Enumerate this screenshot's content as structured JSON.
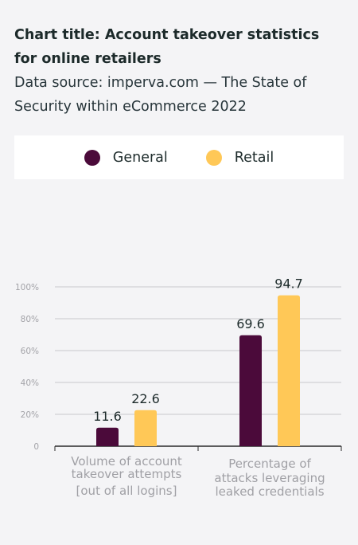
{
  "header": {
    "title": "Chart title: Account takeover statistics for online retailers",
    "subtitle": "Data source: imperva.com — The State of Security within eCommerce 2022"
  },
  "legend": [
    {
      "label": "General",
      "color": "#4b0a3a"
    },
    {
      "label": "Retail",
      "color": "#ffc857"
    }
  ],
  "chart_data": {
    "type": "bar",
    "categories": [
      [
        "Volume of account",
        "takeover attempts",
        "[out of all logins]"
      ],
      [
        "Percentage of",
        "attacks leveraging",
        "leaked credentials"
      ]
    ],
    "series": [
      {
        "name": "General",
        "values": [
          11.6,
          69.6
        ],
        "color": "#4b0a3a"
      },
      {
        "name": "Retail",
        "values": [
          22.6,
          94.7
        ],
        "color": "#ffc857"
      }
    ],
    "ylim": [
      0,
      100
    ],
    "yticks": [
      0,
      20,
      40,
      60,
      80,
      100
    ],
    "ytick_labels": [
      "0",
      "20%",
      "40%",
      "60%",
      "80%",
      "100%"
    ],
    "grid": true
  }
}
